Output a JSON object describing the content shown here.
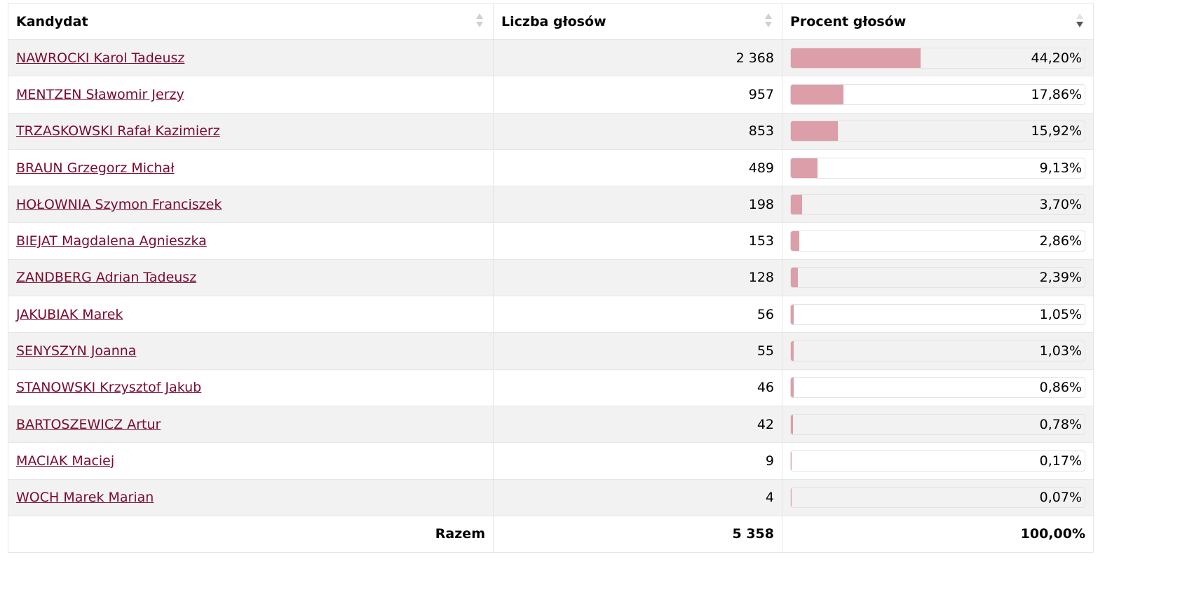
{
  "headers": {
    "candidate": "Kandydat",
    "votes": "Liczba głosów",
    "percent": "Procent głosów"
  },
  "colors": {
    "link": "#7a0a2c",
    "bar": "#dc9ea9"
  },
  "sort": {
    "column": "percent",
    "direction": "descending"
  },
  "rows": [
    {
      "name": "NAWROCKI Karol Tadeusz",
      "votes": "2 368",
      "percent": "44,20%",
      "share": 44.2
    },
    {
      "name": "MENTZEN Sławomir Jerzy",
      "votes": "957",
      "percent": "17,86%",
      "share": 17.86
    },
    {
      "name": "TRZASKOWSKI Rafał Kazimierz",
      "votes": "853",
      "percent": "15,92%",
      "share": 15.92
    },
    {
      "name": "BRAUN Grzegorz Michał",
      "votes": "489",
      "percent": "9,13%",
      "share": 9.13
    },
    {
      "name": "HOŁOWNIA Szymon Franciszek",
      "votes": "198",
      "percent": "3,70%",
      "share": 3.7
    },
    {
      "name": "BIEJAT Magdalena Agnieszka",
      "votes": "153",
      "percent": "2,86%",
      "share": 2.86
    },
    {
      "name": "ZANDBERG Adrian Tadeusz",
      "votes": "128",
      "percent": "2,39%",
      "share": 2.39
    },
    {
      "name": "JAKUBIAK Marek",
      "votes": "56",
      "percent": "1,05%",
      "share": 1.05
    },
    {
      "name": "SENYSZYN Joanna",
      "votes": "55",
      "percent": "1,03%",
      "share": 1.03
    },
    {
      "name": "STANOWSKI Krzysztof Jakub",
      "votes": "46",
      "percent": "0,86%",
      "share": 0.86
    },
    {
      "name": "BARTOSZEWICZ Artur",
      "votes": "42",
      "percent": "0,78%",
      "share": 0.78
    },
    {
      "name": "MACIAK Maciej",
      "votes": "9",
      "percent": "0,17%",
      "share": 0.17
    },
    {
      "name": "WOCH Marek Marian",
      "votes": "4",
      "percent": "0,07%",
      "share": 0.07
    }
  ],
  "total": {
    "label": "Razem",
    "votes": "5 358",
    "percent": "100,00%"
  }
}
